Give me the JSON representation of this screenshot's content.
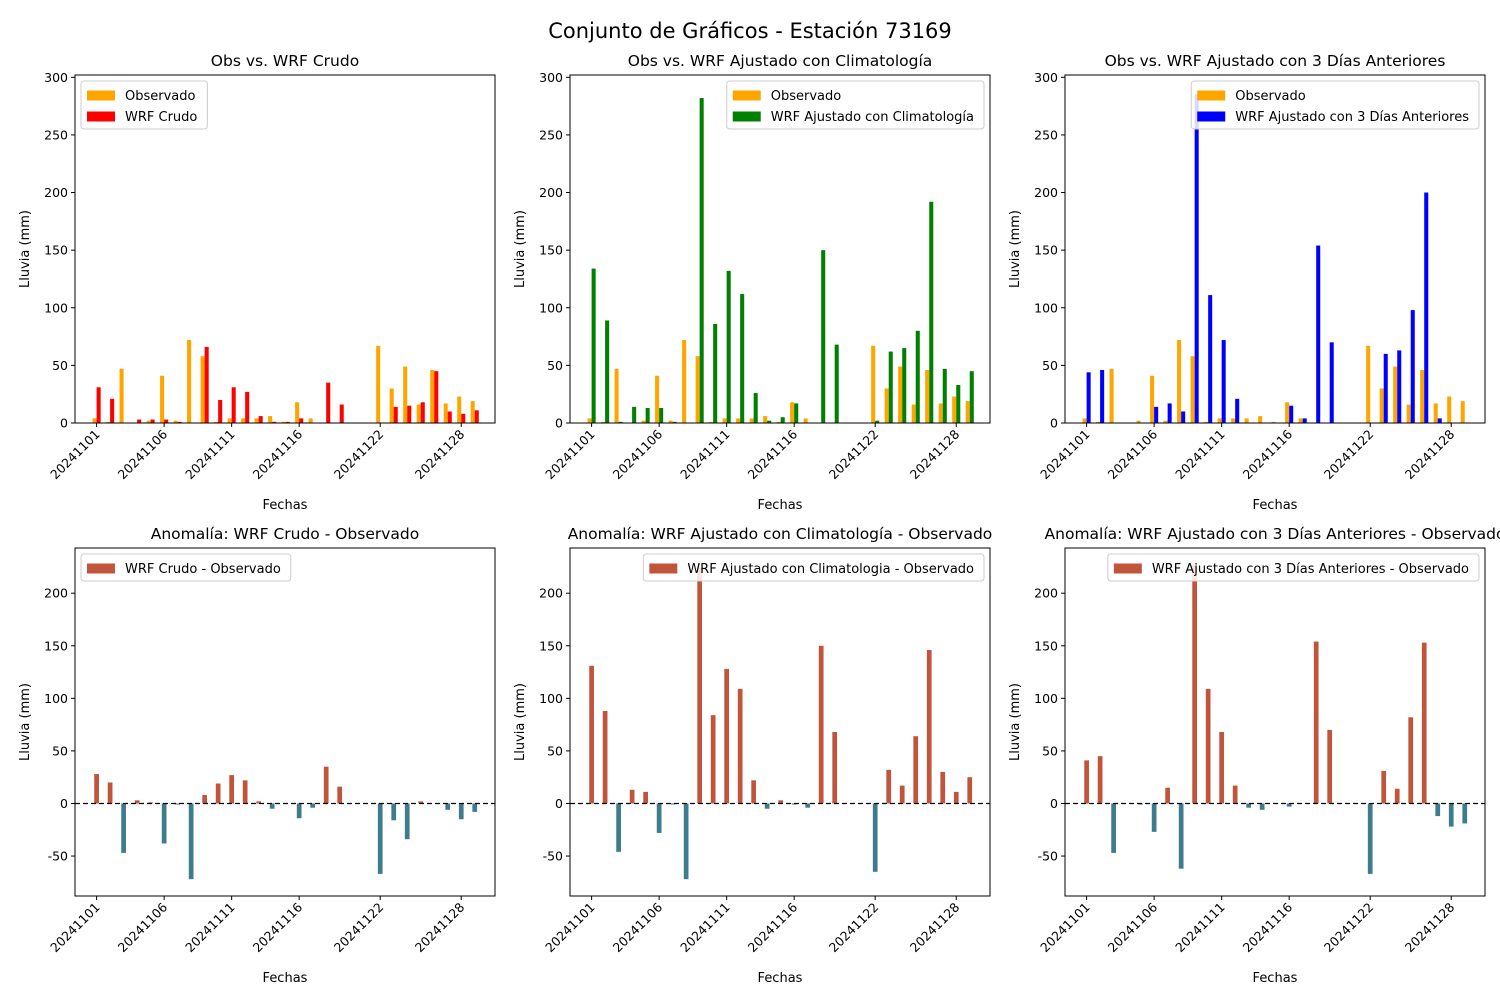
{
  "figure": {
    "suptitle": "Conjunto de Gráficos - Estación 73169",
    "colors": {
      "observado": "#ffa500",
      "wrf_crudo": "#ff0000",
      "wrf_climatologia": "#008000",
      "wrf_3dias": "#0000ff",
      "anomaly_positive": "#c0553c",
      "anomaly_negative": "#3d7c8c",
      "zero_line": "#000000"
    }
  },
  "chart_data": [
    {
      "type": "bar",
      "title": "Obs vs. WRF Crudo",
      "xlabel": "Fechas",
      "ylabel": "Lluvia (mm)",
      "ylim": [
        0,
        302
      ],
      "yticks": [
        0,
        50,
        100,
        150,
        200,
        250,
        300
      ],
      "xtick_labels": [
        "20241101",
        "20241106",
        "20241111",
        "20241116",
        "20241122",
        "20241128"
      ],
      "xtick_positions": [
        1,
        6,
        11,
        16,
        22,
        28
      ],
      "legend": "top-left",
      "dates": [
        1,
        2,
        3,
        4,
        5,
        6,
        7,
        8,
        9,
        10,
        11,
        12,
        13,
        14,
        15,
        16,
        17,
        18,
        19,
        20,
        21,
        22,
        23,
        24,
        25,
        26,
        27,
        28,
        29,
        30
      ],
      "series": [
        {
          "name": "Observado",
          "color_key": "observado",
          "values": [
            4,
            1,
            47,
            0,
            2,
            41,
            2,
            72,
            58,
            1,
            4,
            4,
            4,
            6,
            1,
            18,
            4,
            0,
            0,
            0,
            0,
            67,
            30,
            49,
            16,
            46,
            17,
            23,
            19,
            0
          ]
        },
        {
          "name": "WRF Crudo",
          "color_key": "wrf_crudo",
          "values": [
            31,
            21,
            0,
            3,
            3,
            3,
            1,
            0,
            66,
            20,
            31,
            27,
            6,
            1,
            1,
            4,
            0,
            35,
            16,
            0,
            0,
            0,
            14,
            15,
            18,
            45,
            10,
            8,
            11,
            0
          ]
        }
      ]
    },
    {
      "type": "bar",
      "title": "Obs vs. WRF Ajustado con Climatología",
      "xlabel": "Fechas",
      "ylabel": "Lluvia (mm)",
      "ylim": [
        0,
        302
      ],
      "yticks": [
        0,
        50,
        100,
        150,
        200,
        250,
        300
      ],
      "xtick_labels": [
        "20241101",
        "20241106",
        "20241111",
        "20241116",
        "20241122",
        "20241128"
      ],
      "xtick_positions": [
        1,
        6,
        11,
        16,
        22,
        28
      ],
      "legend": "top-right",
      "dates": [
        1,
        2,
        3,
        4,
        5,
        6,
        7,
        8,
        9,
        10,
        11,
        12,
        13,
        14,
        15,
        16,
        17,
        18,
        19,
        20,
        21,
        22,
        23,
        24,
        25,
        26,
        27,
        28,
        29,
        30
      ],
      "series": [
        {
          "name": "Observado",
          "color_key": "observado",
          "values": [
            4,
            1,
            47,
            0,
            2,
            41,
            2,
            72,
            58,
            1,
            4,
            4,
            4,
            6,
            1,
            18,
            4,
            0,
            0,
            0,
            0,
            67,
            30,
            49,
            16,
            46,
            17,
            23,
            19,
            0
          ]
        },
        {
          "name": "WRF Ajustado con Climatología",
          "color_key": "wrf_climatologia",
          "values": [
            134,
            89,
            1,
            14,
            13,
            13,
            1,
            0,
            282,
            86,
            132,
            112,
            26,
            2,
            5,
            17,
            0,
            150,
            68,
            0,
            0,
            2,
            62,
            65,
            80,
            192,
            47,
            33,
            45,
            0
          ]
        }
      ]
    },
    {
      "type": "bar",
      "title": "Obs vs. WRF Ajustado con 3 Días Anteriores",
      "xlabel": "Fechas",
      "ylabel": "Lluvia (mm)",
      "ylim": [
        0,
        302
      ],
      "yticks": [
        0,
        50,
        100,
        150,
        200,
        250,
        300
      ],
      "xtick_labels": [
        "20241101",
        "20241106",
        "20241111",
        "20241116",
        "20241122",
        "20241128"
      ],
      "xtick_positions": [
        1,
        6,
        11,
        16,
        22,
        28
      ],
      "legend": "top-right",
      "dates": [
        1,
        2,
        3,
        4,
        5,
        6,
        7,
        8,
        9,
        10,
        11,
        12,
        13,
        14,
        15,
        16,
        17,
        18,
        19,
        20,
        21,
        22,
        23,
        24,
        25,
        26,
        27,
        28,
        29,
        30
      ],
      "series": [
        {
          "name": "Observado",
          "color_key": "observado",
          "values": [
            4,
            1,
            47,
            0,
            2,
            41,
            2,
            72,
            58,
            1,
            4,
            4,
            4,
            6,
            1,
            18,
            4,
            0,
            0,
            0,
            0,
            67,
            30,
            49,
            16,
            46,
            17,
            23,
            19,
            0
          ]
        },
        {
          "name": "WRF Ajustado con 3 Días Anteriores",
          "color_key": "wrf_3dias",
          "values": [
            44,
            46,
            0,
            0,
            0,
            14,
            17,
            10,
            285,
            111,
            72,
            21,
            0,
            0,
            0,
            15,
            4,
            154,
            70,
            0,
            0,
            0,
            60,
            63,
            98,
            200,
            4,
            0,
            0,
            0
          ]
        }
      ]
    },
    {
      "type": "bar",
      "title": "Anomalía: WRF Crudo - Observado",
      "xlabel": "Fechas",
      "ylabel": "Lluvia (mm)",
      "ylim": [
        -88,
        243
      ],
      "yticks": [
        -50,
        0,
        50,
        100,
        150,
        200
      ],
      "xtick_labels": [
        "20241101",
        "20241106",
        "20241111",
        "20241116",
        "20241122",
        "20241128"
      ],
      "xtick_positions": [
        1,
        6,
        11,
        16,
        22,
        28
      ],
      "legend": "top-left",
      "zero_line": true,
      "dates": [
        1,
        2,
        3,
        4,
        5,
        6,
        7,
        8,
        9,
        10,
        11,
        12,
        13,
        14,
        15,
        16,
        17,
        18,
        19,
        20,
        21,
        22,
        23,
        24,
        25,
        26,
        27,
        28,
        29,
        30
      ],
      "series": [
        {
          "name": "WRF Crudo - Observado",
          "values": [
            28,
            20,
            -47,
            3,
            1,
            -38,
            -1,
            -72,
            8,
            19,
            27,
            22,
            2,
            -5,
            0,
            -14,
            -4,
            35,
            16,
            0,
            0,
            -67,
            -16,
            -34,
            2,
            0,
            -6,
            -15,
            -8,
            0
          ]
        }
      ]
    },
    {
      "type": "bar",
      "title": "Anomalía: WRF Ajustado con Climatología - Observado",
      "xlabel": "Fechas",
      "ylabel": "Lluvia (mm)",
      "ylim": [
        -88,
        243
      ],
      "yticks": [
        -50,
        0,
        50,
        100,
        150,
        200
      ],
      "xtick_labels": [
        "20241101",
        "20241106",
        "20241111",
        "20241116",
        "20241122",
        "20241128"
      ],
      "xtick_positions": [
        1,
        6,
        11,
        16,
        22,
        28
      ],
      "legend": "top-right",
      "zero_line": true,
      "dates": [
        1,
        2,
        3,
        4,
        5,
        6,
        7,
        8,
        9,
        10,
        11,
        12,
        13,
        14,
        15,
        16,
        17,
        18,
        19,
        20,
        21,
        22,
        23,
        24,
        25,
        26,
        27,
        28,
        29,
        30
      ],
      "series": [
        {
          "name": "WRF Ajustado con Climatologia - Observado",
          "values": [
            131,
            88,
            -46,
            13,
            11,
            -28,
            -1,
            -72,
            224,
            84,
            128,
            109,
            22,
            -5,
            3,
            -1,
            -4,
            150,
            68,
            0,
            0,
            -65,
            32,
            17,
            64,
            146,
            30,
            11,
            25,
            0
          ]
        }
      ]
    },
    {
      "type": "bar",
      "title": "Anomalía: WRF Ajustado con 3 Días Anteriores - Observado",
      "xlabel": "Fechas",
      "ylabel": "Lluvia (mm)",
      "ylim": [
        -88,
        243
      ],
      "yticks": [
        -50,
        0,
        50,
        100,
        150,
        200
      ],
      "xtick_labels": [
        "20241101",
        "20241106",
        "20241111",
        "20241116",
        "20241122",
        "20241128"
      ],
      "xtick_positions": [
        1,
        6,
        11,
        16,
        22,
        28
      ],
      "legend": "top-right",
      "zero_line": true,
      "dates": [
        1,
        2,
        3,
        4,
        5,
        6,
        7,
        8,
        9,
        10,
        11,
        12,
        13,
        14,
        15,
        16,
        17,
        18,
        19,
        20,
        21,
        22,
        23,
        24,
        25,
        26,
        27,
        28,
        29,
        30
      ],
      "series": [
        {
          "name": "WRF Ajustado con 3 Días Anteriores - Observado",
          "values": [
            41,
            45,
            -47,
            0,
            -1,
            -27,
            15,
            -62,
            227,
            109,
            68,
            17,
            -4,
            -6,
            0,
            -3,
            0,
            154,
            70,
            0,
            0,
            -67,
            31,
            14,
            82,
            153,
            -12,
            -22,
            -19,
            0
          ]
        }
      ]
    }
  ]
}
